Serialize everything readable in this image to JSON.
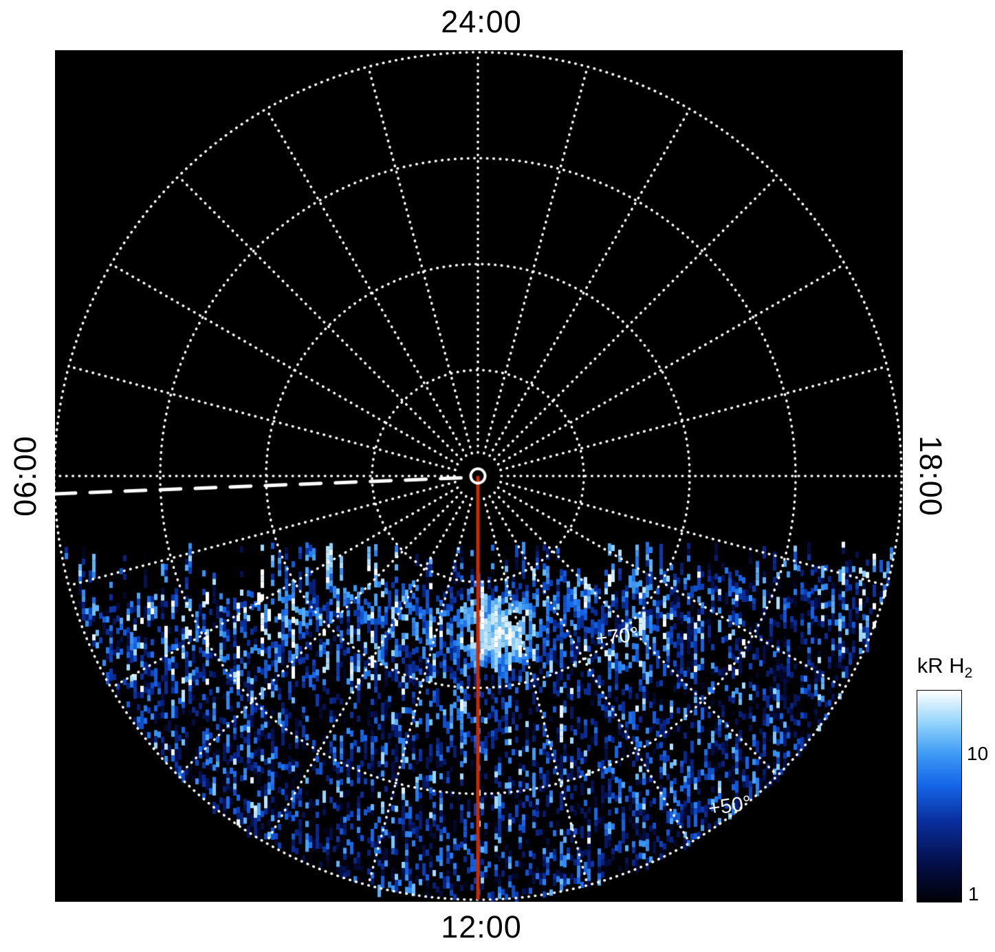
{
  "page": {
    "background": "#ffffff"
  },
  "plot": {
    "background": "#000000",
    "time_labels": {
      "top": "24:00",
      "bottom": "12:00",
      "left": "06:00",
      "right": "18:00"
    },
    "latitude_annotations": [
      {
        "text": "+70°"
      },
      {
        "text": "+50°"
      }
    ],
    "grid": {
      "color": "#ffffff",
      "circle_fractions": [
        0.25,
        0.5,
        0.75,
        1.0
      ],
      "circle_latitudes": [
        "+80°",
        "+70°",
        "+60°",
        "+50°"
      ],
      "radial_count": 24,
      "center_latitude": "+90°"
    },
    "noon_meridian_color": "#cc2a00",
    "dawn_dashed_line_color": "#ffffff"
  },
  "chart_data": {
    "type": "heatmap",
    "projection": "polar (north pole at center)",
    "quantity": "auroral H2 emission brightness",
    "units": "kR",
    "angular_coordinate": "local time",
    "angular_ticks": [
      "24:00",
      "18:00",
      "12:00",
      "06:00"
    ],
    "radial_coordinate": "latitude",
    "radial_ticks": [
      "+90°",
      "+80°",
      "+70°",
      "+60°",
      "+50°"
    ],
    "scale": "log",
    "value_range": [
      1,
      30
    ],
    "colormap_stops": [
      [
        0.0,
        "#010108"
      ],
      [
        0.18,
        "#050f4a"
      ],
      [
        0.38,
        "#0a2f9e"
      ],
      [
        0.55,
        "#1565e8"
      ],
      [
        0.7,
        "#3f9bf5"
      ],
      [
        0.84,
        "#8fd2fb"
      ],
      [
        1.0,
        "#ffffff"
      ]
    ],
    "features": {
      "emission_region": "dayside only: below dawn-dusk terminator, local times ~06:00 through 12:00 to ~18:00",
      "terminator": {
        "dy_at_center": 150,
        "tilt": -0.05
      },
      "main_oval": {
        "latitude_fraction": 0.36,
        "width": 0.07,
        "peak_kR": 22
      },
      "secondary_arc": {
        "latitude_fraction": 0.56,
        "width": 0.06,
        "peak_kR": 8
      },
      "speckle": {
        "base_probability": 0.13,
        "radial_gain": 0.47
      },
      "streak_zone_depth": 140,
      "seed": 42
    },
    "colorbar": {
      "label": "kR H",
      "label_subscript": "2",
      "ticks": [
        {
          "label": "10",
          "fraction": 0.69
        },
        {
          "label": "1",
          "fraction": 0.0
        }
      ]
    }
  }
}
